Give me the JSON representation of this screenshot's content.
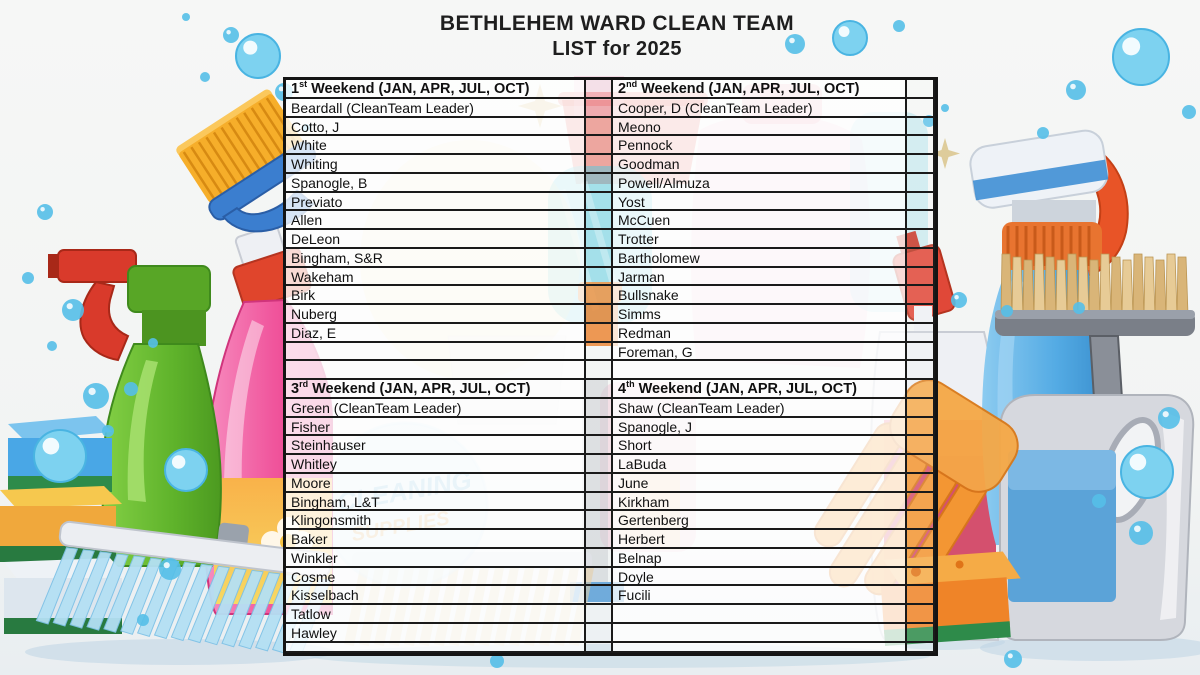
{
  "title": {
    "line1": "BETHLEHEM WARD CLEAN TEAM",
    "line2": "LIST for 2025"
  },
  "table": {
    "sections": [
      {
        "id": "weekend-1",
        "ordinal_num": "1",
        "ordinal_suffix": "st",
        "header_rest": " Weekend (JAN, APR, JUL, OCT)",
        "rows": [
          "Beardall (CleanTeam Leader)",
          "Cotto, J",
          "White",
          "Whiting",
          "Spanogle, B",
          "Previato",
          "Allen",
          "DeLeon",
          "Bingham, S&R",
          "Wakeham",
          "Birk",
          "Nuberg",
          "Diaz, E"
        ]
      },
      {
        "id": "weekend-2",
        "ordinal_num": "2",
        "ordinal_suffix": "nd",
        "header_rest": " Weekend (JAN, APR, JUL, OCT)",
        "rows": [
          "Cooper, D (CleanTeam Leader)",
          "Meono",
          "Pennock",
          "Goodman",
          "Powell/Almuza",
          "Yost",
          "McCuen",
          "Trotter",
          "Bartholomew",
          "Jarman",
          "Bullsnake",
          "Simms",
          "Redman",
          "Foreman, G"
        ]
      },
      {
        "id": "weekend-3",
        "ordinal_num": "3",
        "ordinal_suffix": "rd",
        "header_rest": " Weekend (JAN, APR, JUL, OCT)",
        "rows": [
          "Green (CleanTeam Leader)",
          "Fisher",
          "Steinhauser",
          "Whitley",
          "Moore",
          "Bingham, L&T",
          "Klingonsmith",
          "Baker",
          "Winkler",
          "Cosme",
          "Kisselbach",
          "Tatlow",
          "Hawley"
        ]
      },
      {
        "id": "weekend-4",
        "ordinal_num": "4",
        "ordinal_suffix": "th",
        "header_rest": " Weekend (JAN, APR, JUL, OCT)",
        "rows": [
          "Shaw (CleanTeam Leader)",
          "Spanogle, J",
          "Short",
          "LaBuda",
          "June",
          "Kirkham",
          "Gertenberg",
          "Herbert",
          "Belnap",
          "Doyle",
          "Fucili"
        ]
      }
    ]
  },
  "background": {
    "watermark_line1": "CLEANING",
    "watermark_line2": "SUPPLIES"
  },
  "colors": {
    "title_text": "#1e1e1e",
    "table_border": "#1a1a1a",
    "cell_background": "#ffffff",
    "bubble_blue": "#55bfe8",
    "watermark_blue": "#79b8dc",
    "watermark_orange": "#e0a040"
  }
}
